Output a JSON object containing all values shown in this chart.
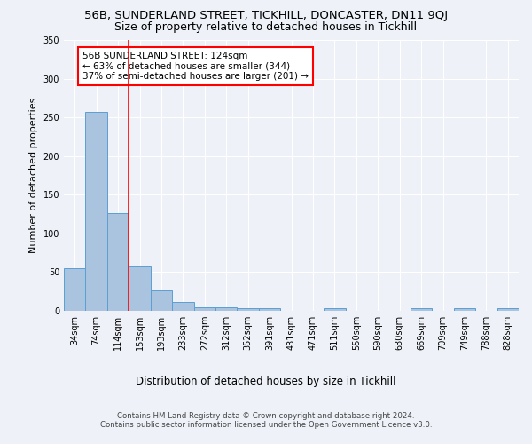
{
  "title1": "56B, SUNDERLAND STREET, TICKHILL, DONCASTER, DN11 9QJ",
  "title2": "Size of property relative to detached houses in Tickhill",
  "xlabel": "Distribution of detached houses by size in Tickhill",
  "ylabel": "Number of detached properties",
  "categories": [
    "34sqm",
    "74sqm",
    "114sqm",
    "153sqm",
    "193sqm",
    "233sqm",
    "272sqm",
    "312sqm",
    "352sqm",
    "391sqm",
    "431sqm",
    "471sqm",
    "511sqm",
    "550sqm",
    "590sqm",
    "630sqm",
    "669sqm",
    "709sqm",
    "749sqm",
    "788sqm",
    "828sqm"
  ],
  "values": [
    55,
    257,
    126,
    57,
    26,
    12,
    5,
    5,
    4,
    4,
    0,
    0,
    4,
    0,
    0,
    0,
    3,
    0,
    3,
    0,
    3
  ],
  "bar_color": "#aac4e0",
  "bar_edge_color": "#5a9fd4",
  "property_line_x": 2.5,
  "annotation_text": "56B SUNDERLAND STREET: 124sqm\n← 63% of detached houses are smaller (344)\n37% of semi-detached houses are larger (201) →",
  "annotation_box_color": "white",
  "annotation_box_edge": "red",
  "vline_color": "red",
  "ylim": [
    0,
    350
  ],
  "yticks": [
    0,
    50,
    100,
    150,
    200,
    250,
    300,
    350
  ],
  "footer": "Contains HM Land Registry data © Crown copyright and database right 2024.\nContains public sector information licensed under the Open Government Licence v3.0.",
  "bg_color": "#eef2f8",
  "plot_bg_color": "#eef2f8",
  "grid_color": "#ffffff",
  "title1_fontsize": 9.5,
  "title2_fontsize": 9,
  "ylabel_fontsize": 8,
  "xlabel_fontsize": 8.5,
  "tick_fontsize": 7,
  "footer_fontsize": 6.2,
  "annot_fontsize": 7.5
}
